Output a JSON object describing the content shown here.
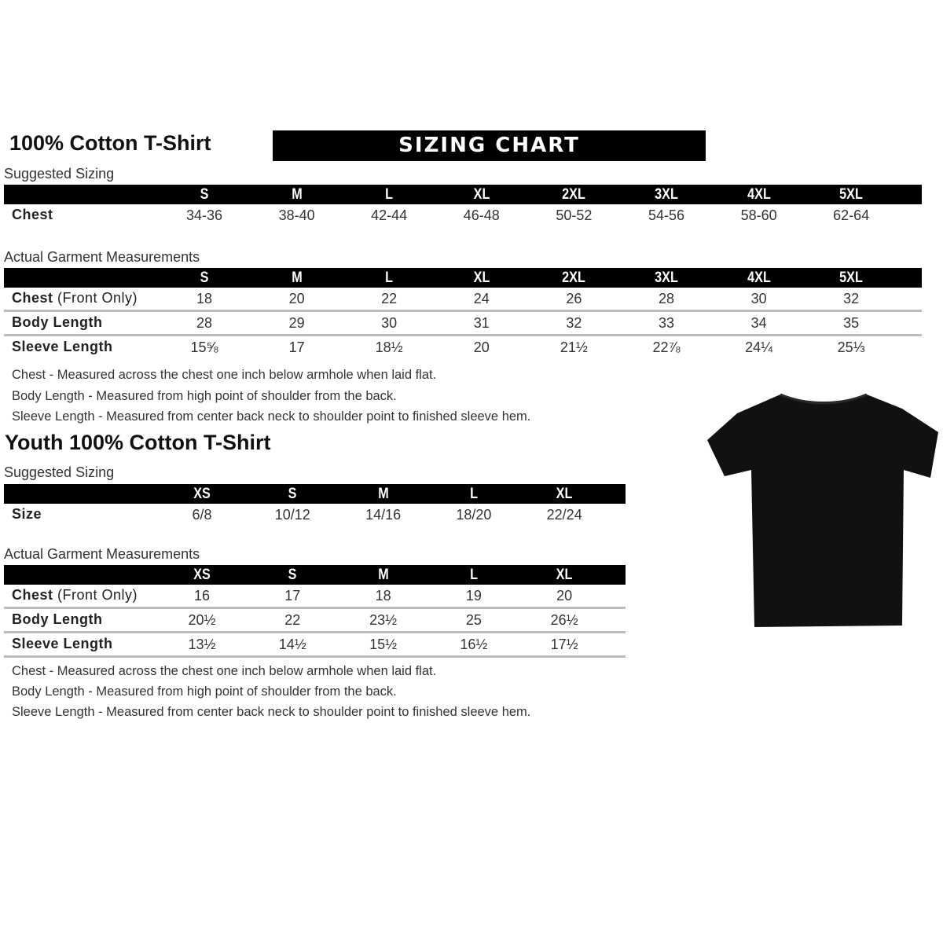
{
  "adult": {
    "title": "100% Cotton T-Shirt",
    "banner": "SIZING CHART",
    "suggested_label": "Suggested Sizing",
    "sizes": [
      "S",
      "M",
      "L",
      "XL",
      "2XL",
      "3XL",
      "4XL",
      "5XL"
    ],
    "suggested_rows": [
      {
        "label": "Chest",
        "values": [
          "34-36",
          "38-40",
          "42-44",
          "46-48",
          "50-52",
          "54-56",
          "58-60",
          "62-64"
        ]
      }
    ],
    "actual_label": "Actual Garment Measurements",
    "actual_rows": [
      {
        "label": "Chest",
        "label_extra": " (Front Only)",
        "values": [
          "18",
          "20",
          "22",
          "24",
          "26",
          "28",
          "30",
          "32"
        ]
      },
      {
        "label": "Body Length",
        "values": [
          "28",
          "29",
          "30",
          "31",
          "32",
          "33",
          "34",
          "35"
        ]
      },
      {
        "label": "Sleeve Length",
        "values": [
          "15⅝",
          "17",
          "18½",
          "20",
          "21½",
          "22⅞",
          "24¼",
          "25⅓"
        ]
      }
    ],
    "notes": [
      "Chest - Measured across the chest one inch below armhole when laid flat.",
      "Body Length - Measured from high point of shoulder from the back.",
      "Sleeve Length - Measured from center back neck to shoulder point to finished sleeve hem."
    ]
  },
  "youth": {
    "title": "Youth 100% Cotton T-Shirt",
    "suggested_label": "Suggested Sizing",
    "sizes": [
      "XS",
      "S",
      "M",
      "L",
      "XL"
    ],
    "suggested_rows": [
      {
        "label": "Size",
        "values": [
          "6/8",
          "10/12",
          "14/16",
          "18/20",
          "22/24"
        ]
      }
    ],
    "actual_label": "Actual Garment Measurements",
    "actual_rows": [
      {
        "label": "Chest",
        "label_extra": " (Front Only)",
        "values": [
          "16",
          "17",
          "18",
          "19",
          "20"
        ]
      },
      {
        "label": "Body Length",
        "values": [
          "20½",
          "22",
          "23½",
          "25",
          "26½"
        ]
      },
      {
        "label": "Sleeve Length",
        "values": [
          "13½",
          "14½",
          "15½",
          "16½",
          "17½"
        ]
      }
    ],
    "notes": [
      "Chest - Measured across the chest one inch below armhole when laid flat.",
      "Body Length - Measured from high point of shoulder from the back.",
      "Sleeve Length - Measured from center back neck to shoulder point to finished sleeve hem."
    ]
  },
  "image": {
    "icon": "black-tshirt-image",
    "color": "#111111"
  }
}
